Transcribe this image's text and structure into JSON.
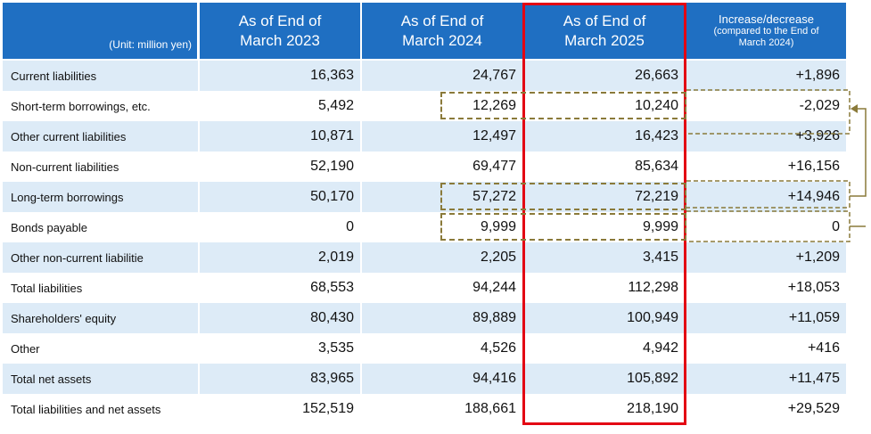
{
  "header": {
    "unit": "(Unit: million yen)",
    "col1": [
      "As of End of",
      "March 2023"
    ],
    "col2": [
      "As of End of",
      "March 2024"
    ],
    "col3": [
      "As of End of",
      "March 2025"
    ],
    "col4_title": "Increase/decrease",
    "col4_sub": [
      "(compared to the End of",
      "March 2024)"
    ]
  },
  "rows": [
    {
      "label": "Current liabilities",
      "v2023": "16,363",
      "v2024": "24,767",
      "v2025": "26,663",
      "change": "+1,896"
    },
    {
      "label": "Short-term borrowings, etc.",
      "v2023": "5,492",
      "v2024": "12,269",
      "v2025": "10,240",
      "change": "-2,029"
    },
    {
      "label": "Other current liabilities",
      "v2023": "10,871",
      "v2024": "12,497",
      "v2025": "16,423",
      "change": "+3,926"
    },
    {
      "label": "Non-current liabilities",
      "v2023": "52,190",
      "v2024": "69,477",
      "v2025": "85,634",
      "change": "+16,156"
    },
    {
      "label": "Long-term borrowings",
      "v2023": "50,170",
      "v2024": "57,272",
      "v2025": "72,219",
      "change": "+14,946"
    },
    {
      "label": "Bonds payable",
      "v2023": "0",
      "v2024": "9,999",
      "v2025": "9,999",
      "change": "0"
    },
    {
      "label": "Other non-current liabilitie",
      "v2023": "2,019",
      "v2024": "2,205",
      "v2025": "3,415",
      "change": "+1,209"
    },
    {
      "label": "Total liabilities",
      "v2023": "68,553",
      "v2024": "94,244",
      "v2025": "112,298",
      "change": "+18,053"
    },
    {
      "label": "Shareholders' equity",
      "v2023": "80,430",
      "v2024": "89,889",
      "v2025": "100,949",
      "change": "+11,059"
    },
    {
      "label": "Other",
      "v2023": "3,535",
      "v2024": "4,526",
      "v2025": "4,942",
      "change": "+416"
    },
    {
      "label": "Total net assets",
      "v2023": "83,965",
      "v2024": "94,416",
      "v2025": "105,892",
      "change": "+11,475"
    },
    {
      "label": "Total liabilities and net assets",
      "v2023": "152,519",
      "v2024": "188,661",
      "v2025": "218,190",
      "change": "+29,529"
    }
  ],
  "colors": {
    "header_bg": "#1f6fc2",
    "row_shade": "#ddebf7",
    "highlight": "#e30613",
    "dashed": "#8a7a3a"
  }
}
